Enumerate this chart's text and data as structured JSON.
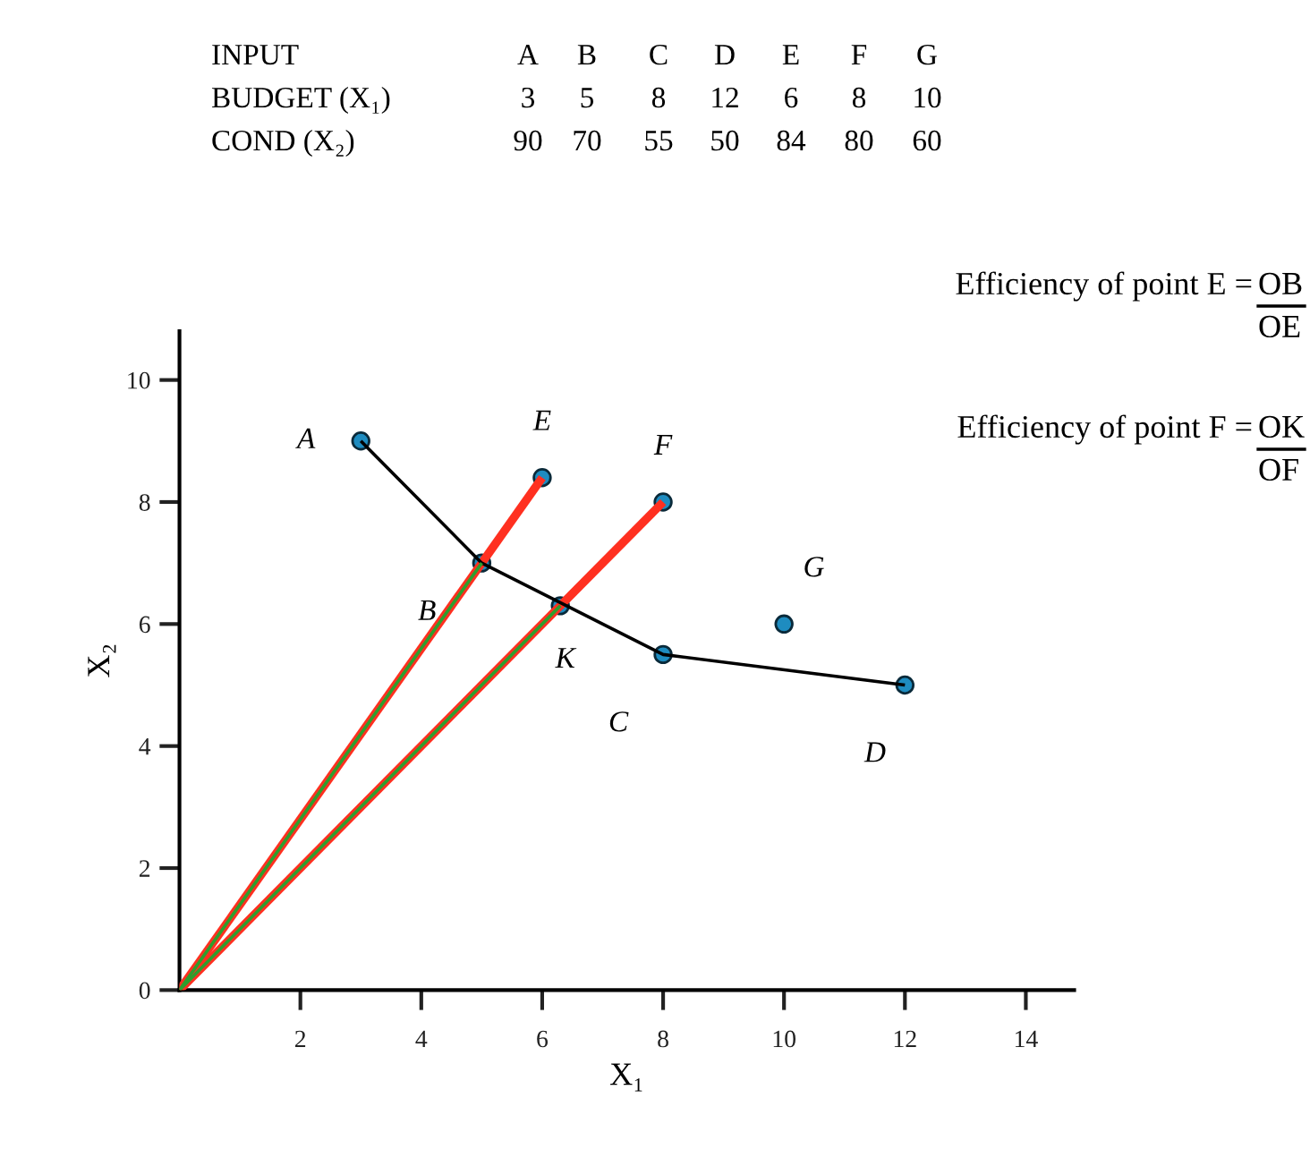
{
  "chart_data": {
    "type": "line",
    "xlabel": "X₁",
    "ylabel": "X₂",
    "xlim": [
      0,
      14.8
    ],
    "ylim": [
      0,
      10.8
    ],
    "xticks": [
      2,
      4,
      6,
      8,
      10,
      12,
      14
    ],
    "yticks": [
      0,
      2,
      4,
      6,
      8,
      10
    ],
    "grid": false,
    "legend": false,
    "line_style": "solid",
    "series": [
      {
        "color": "#000000",
        "x": [
          3,
          5,
          8,
          12
        ],
        "values": [
          9,
          7,
          5.5,
          5
        ]
      },
      {
        "color": "#2e9e2e",
        "x": [
          0,
          5
        ],
        "values": [
          0,
          7
        ]
      },
      {
        "color": "#2e9e2e",
        "x": [
          0,
          6.3
        ],
        "values": [
          0,
          6.3
        ]
      },
      {
        "color": "#ff3020",
        "x": [
          0,
          6
        ],
        "values": [
          0,
          8.4
        ]
      },
      {
        "color": "#ff3020",
        "x": [
          0,
          8
        ],
        "values": [
          0,
          8
        ]
      },
      {
        "type": "scatter",
        "marker": "circle",
        "color": "#1e8cc0",
        "x": [
          3,
          5,
          8,
          12,
          6,
          8,
          10,
          6.3
        ],
        "values": [
          9,
          7,
          5.5,
          5,
          8.4,
          8,
          6,
          6.3
        ]
      }
    ],
    "annotations": [
      "INPUT",
      "A",
      "B",
      "C",
      "D",
      "E",
      "F",
      "G",
      "BUDGET (X₁)",
      "3",
      "5",
      "8",
      "12",
      "6",
      "8",
      "10",
      "COND (X₂)",
      "90",
      "70",
      "55",
      "50",
      "84",
      "80",
      "60",
      "Efficiency of point E =",
      "OB",
      "OE",
      "Efficiency of point F =",
      "OK",
      "OF",
      {
        "text": "A",
        "x": 3,
        "y": 9
      },
      {
        "text": "B",
        "x": 5,
        "y": 7
      },
      {
        "text": "C",
        "x": 8,
        "y": 5.5
      },
      {
        "text": "D",
        "x": 12,
        "y": 5
      },
      {
        "text": "E",
        "x": 6,
        "y": 8.4
      },
      {
        "text": "F",
        "x": 8,
        "y": 8
      },
      {
        "text": "G",
        "x": 10,
        "y": 6
      },
      {
        "text": "K",
        "x": 6.3,
        "y": 6.3
      }
    ]
  }
}
